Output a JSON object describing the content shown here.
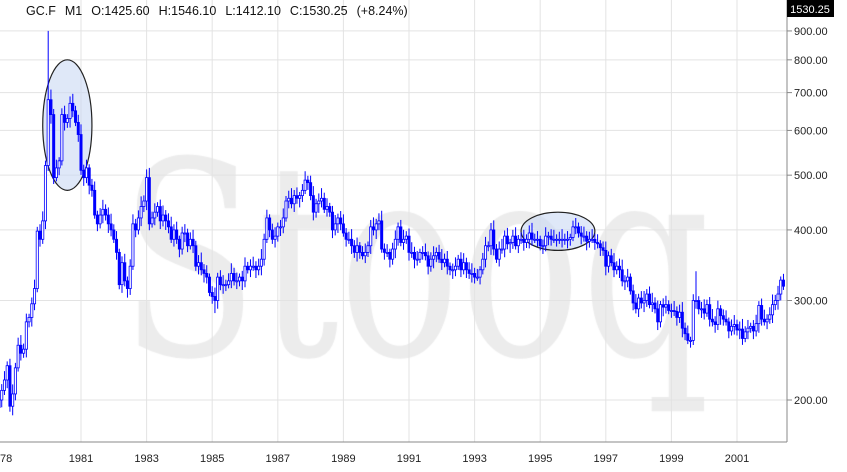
{
  "header": {
    "symbol": "GC.F",
    "interval": "M1",
    "open": "O:1425.60",
    "high": "H:1546.10",
    "low": "L:1412.10",
    "close": "C:1530.25",
    "change": "(+8.24%)"
  },
  "last_price_label": "1530.25",
  "watermark": "Stooq",
  "colors": {
    "candle": "#0000ff",
    "grid": "#e3e3e3",
    "ellipse_fill": "#c9d8f3",
    "ellipse_stroke": "#222222",
    "price_box": "#000000"
  },
  "chart_data": {
    "type": "candlestick",
    "frequency": "monthly",
    "start": "1978-07",
    "y_scale": "log",
    "ylim": [
      170,
      950
    ],
    "grid": true,
    "y_ticks": [
      "200.00",
      "300.00",
      "400.00",
      "500.00",
      "600.00",
      "700.00",
      "800.00",
      "900.00"
    ],
    "x_ticks": [
      "78",
      "1981",
      "1983",
      "1985",
      "1987",
      "1989",
      "1991",
      "1993",
      "1995",
      "1997",
      "1999",
      "2001"
    ],
    "closes": [
      200,
      208,
      217,
      230,
      195,
      205,
      228,
      250,
      242,
      246,
      275,
      280,
      296,
      315,
      398,
      385,
      415,
      520,
      680,
      640,
      495,
      515,
      530,
      640,
      620,
      630,
      670,
      650,
      620,
      590,
      510,
      495,
      515,
      480,
      470,
      425,
      410,
      425,
      435,
      425,
      410,
      400,
      385,
      365,
      320,
      350,
      325,
      315,
      345,
      410,
      400,
      420,
      440,
      450,
      495,
      410,
      420,
      430,
      440,
      415,
      425,
      415,
      405,
      385,
      400,
      385,
      370,
      395,
      395,
      375,
      385,
      375,
      345,
      350,
      340,
      335,
      330,
      310,
      305,
      300,
      330,
      320,
      320,
      320,
      325,
      335,
      325,
      325,
      330,
      325,
      345,
      340,
      345,
      345,
      340,
      345,
      355,
      385,
      420,
      400,
      385,
      390,
      405,
      405,
      420,
      450,
      455,
      445,
      460,
      455,
      460,
      470,
      490,
      485,
      460,
      430,
      445,
      450,
      455,
      435,
      440,
      430,
      400,
      410,
      420,
      410,
      395,
      385,
      385,
      375,
      365,
      375,
      365,
      360,
      365,
      375,
      405,
      400,
      410,
      415,
      370,
      365,
      365,
      355,
      370,
      385,
      405,
      380,
      385,
      390,
      365,
      365,
      355,
      355,
      365,
      365,
      360,
      345,
      355,
      360,
      365,
      355,
      350,
      355,
      345,
      340,
      340,
      345,
      355,
      340,
      350,
      340,
      335,
      335,
      330,
      330,
      340,
      355,
      375,
      375,
      400,
      370,
      355,
      370,
      370,
      390,
      378,
      380,
      390,
      375,
      385,
      385,
      380,
      385,
      395,
      385,
      385,
      385,
      375,
      375,
      390,
      390,
      385,
      385,
      385,
      385,
      385,
      385,
      385,
      388,
      405,
      405,
      395,
      390,
      390,
      382,
      385,
      385,
      380,
      378,
      372,
      368,
      345,
      360,
      350,
      340,
      345,
      340,
      325,
      325,
      330,
      312,
      297,
      290,
      303,
      297,
      300,
      308,
      295,
      297,
      290,
      275,
      295,
      292,
      295,
      288,
      288,
      287,
      280,
      286,
      268,
      262,
      255,
      255,
      300,
      300,
      290,
      290,
      285,
      295,
      278,
      275,
      272,
      290,
      282,
      278,
      275,
      265,
      270,
      272,
      266,
      267,
      257,
      264,
      268,
      270,
      265,
      273,
      294,
      278,
      275,
      278,
      283,
      295,
      300,
      308,
      326,
      318
    ],
    "spike_highs": [
      {
        "date": "1980-01",
        "high": 900
      },
      {
        "date": "1983-02",
        "high": 515
      },
      {
        "date": "1999-10",
        "high": 338
      },
      {
        "date": "1985-02",
        "high": 285,
        "low": true
      }
    ],
    "annotations": [
      {
        "type": "ellipse",
        "from": "1979-11",
        "to": "1981-05",
        "price_low": 470,
        "price_high": 800
      },
      {
        "type": "ellipse",
        "from": "1994-06",
        "to": "1996-09",
        "price_low": 368,
        "price_high": 430
      }
    ]
  }
}
